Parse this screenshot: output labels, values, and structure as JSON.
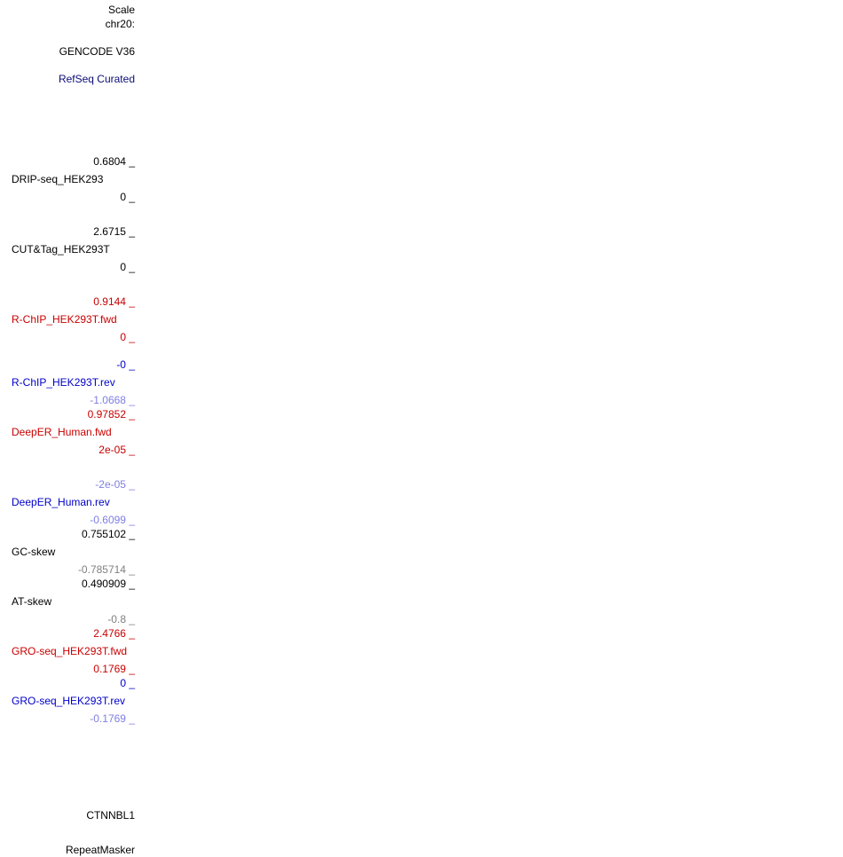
{
  "labels": [
    {
      "text": "Scale",
      "color": "#000000"
    },
    {
      "text": "chr20:",
      "color": "#000000"
    },
    {
      "text": "GENCODE V36",
      "color": "#000000"
    },
    {
      "text": "RefSeq Curated",
      "color": "#0c0c78"
    },
    {
      "text": "0.6804 _",
      "color": "#000000"
    },
    {
      "text": "DRIP-seq_HEK293",
      "color": "#000000"
    },
    {
      "text": "0 _",
      "color": "#000000"
    },
    {
      "text": "2.6715 _",
      "color": "#000000"
    },
    {
      "text": "CUT&Tag_HEK293T",
      "color": "#000000"
    },
    {
      "text": "0 _",
      "color": "#000000"
    },
    {
      "text": "0.9144 _",
      "color": "#c80000"
    },
    {
      "text": "R-ChIP_HEK293T.fwd",
      "color": "#c80000"
    },
    {
      "text": "0 _",
      "color": "#c80000"
    },
    {
      "text": "-0 _",
      "color": "#0000c8"
    },
    {
      "text": "R-ChIP_HEK293T.rev",
      "color": "#0000c8"
    },
    {
      "text": "-1.0668 _",
      "color": "#7f7fe3"
    },
    {
      "text": "0.97852 _",
      "color": "#c80000"
    },
    {
      "text": "DeepER_Human.fwd",
      "color": "#c80000"
    },
    {
      "text": "2e-05 _",
      "color": "#c80000"
    },
    {
      "text": "-2e-05 _",
      "color": "#7f7fe3"
    },
    {
      "text": "DeepER_Human.rev",
      "color": "#0000c8"
    },
    {
      "text": "-0.6099 _",
      "color": "#7f7fe3"
    },
    {
      "text": "0.755102 _",
      "color": "#000000"
    },
    {
      "text": "GC-skew",
      "color": "#000000"
    },
    {
      "text": "-0.785714 _",
      "color": "#808080"
    },
    {
      "text": "0.490909 _",
      "color": "#000000"
    },
    {
      "text": "AT-skew",
      "color": "#000000"
    },
    {
      "text": "-0.8 _",
      "color": "#808080"
    },
    {
      "text": "2.4766 _",
      "color": "#c80000"
    },
    {
      "text": "GRO-seq_HEK293T.fwd",
      "color": "#c80000"
    },
    {
      "text": "0.1769 _",
      "color": "#c80000"
    },
    {
      "text": "0 _",
      "color": "#0000c8"
    },
    {
      "text": "GRO-seq_HEK293T.rev",
      "color": "#0000c8"
    },
    {
      "text": "-0.1769 _",
      "color": "#7f7fe3"
    },
    {
      "text": "CTNNBL1",
      "color": "#000000"
    },
    {
      "text": "RepeatMasker",
      "color": "#000000"
    }
  ]
}
